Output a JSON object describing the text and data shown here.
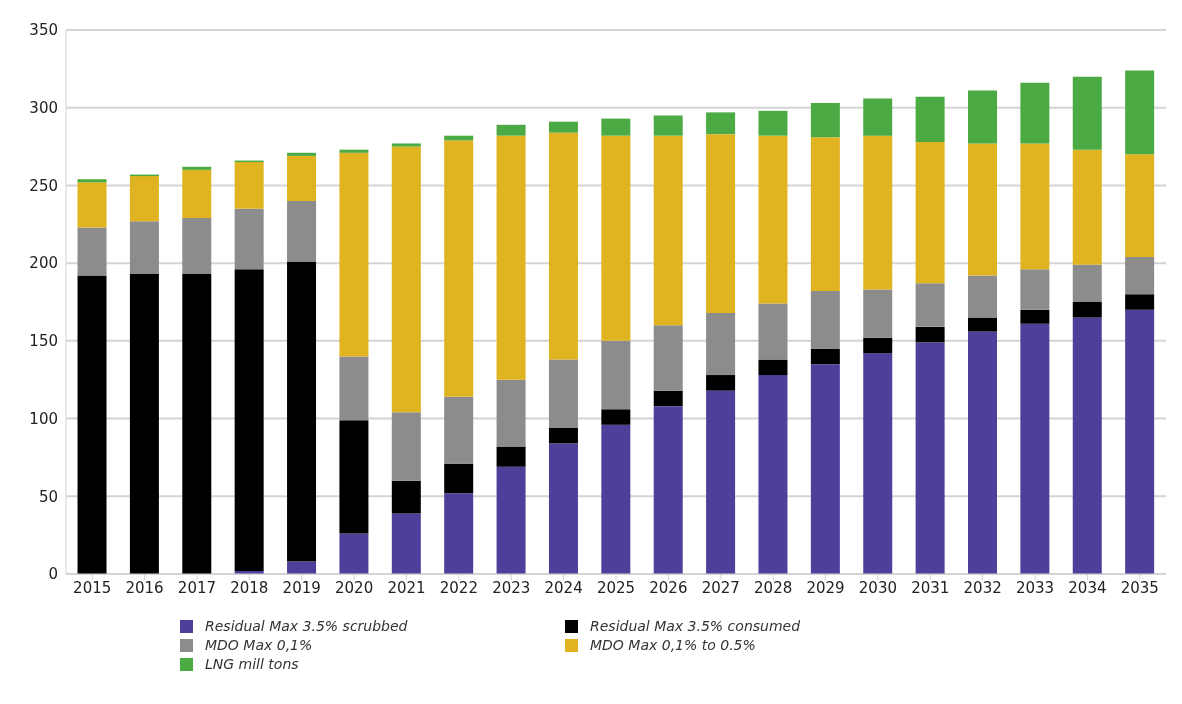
{
  "chart_data": {
    "type": "bar",
    "stacked": true,
    "categories": [
      "2015",
      "2016",
      "2017",
      "2018",
      "2019",
      "2020",
      "2021",
      "2022",
      "2023",
      "2024",
      "2025",
      "2026",
      "2027",
      "2028",
      "2029",
      "2030",
      "2031",
      "2032",
      "2033",
      "2034",
      "2035"
    ],
    "series": [
      {
        "name": "Residual Max 3.5% scrubbed",
        "color": "#4f3f9b",
        "values": [
          0,
          0,
          0,
          2,
          8,
          26,
          39,
          52,
          69,
          84,
          96,
          108,
          118,
          128,
          135,
          142,
          149,
          156,
          161,
          165,
          170
        ]
      },
      {
        "name": "Residual Max 3.5% consumed",
        "color": "#000000",
        "values": [
          192,
          193,
          193,
          194,
          193,
          73,
          21,
          19,
          13,
          10,
          10,
          10,
          10,
          10,
          10,
          10,
          10,
          9,
          9,
          10,
          10
        ]
      },
      {
        "name": "MDO Max 0,1%",
        "color": "#8c8c8c",
        "values": [
          31,
          34,
          36,
          39,
          39,
          41,
          44,
          43,
          43,
          44,
          44,
          42,
          40,
          36,
          37,
          31,
          28,
          27,
          26,
          24,
          24
        ]
      },
      {
        "name": "MDO Max 0,1% to 0.5%",
        "color": "#e0b420",
        "values": [
          29,
          29,
          31,
          30,
          29,
          131,
          171,
          165,
          157,
          146,
          132,
          122,
          115,
          108,
          99,
          99,
          91,
          85,
          81,
          74,
          66
        ]
      },
      {
        "name": "LNG mill tons",
        "color": "#4caa44",
        "values": [
          2,
          1,
          2,
          1,
          2,
          2,
          2,
          3,
          7,
          7,
          11,
          13,
          14,
          16,
          22,
          24,
          29,
          34,
          39,
          47,
          54
        ]
      }
    ],
    "ylim": [
      0,
      350
    ],
    "yticks": [
      0,
      50,
      100,
      150,
      200,
      250,
      300,
      350
    ],
    "grid": "y",
    "legend": "bottom"
  }
}
